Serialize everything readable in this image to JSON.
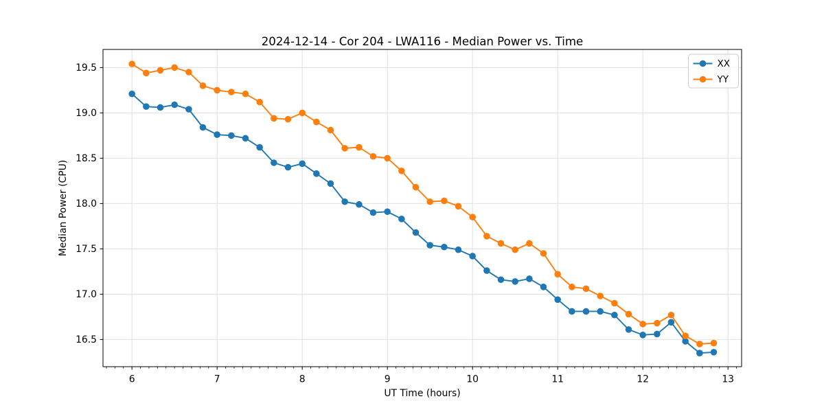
{
  "chart_data": {
    "type": "line",
    "title": "2024-12-14 - Cor 204 - LWA116 - Median Power vs. Time",
    "xlabel": "UT Time (hours)",
    "ylabel": "Median Power (CPU)",
    "xlim": [
      5.66,
      13.16
    ],
    "ylim": [
      16.2,
      19.7
    ],
    "xticks": [
      6,
      7,
      8,
      9,
      10,
      11,
      12,
      13
    ],
    "yticks": [
      16.5,
      17.0,
      17.5,
      18.0,
      18.5,
      19.0,
      19.5
    ],
    "x_minor_step": 0.1,
    "grid": true,
    "grid_color": "#e0e0e0",
    "legend_position": "upper right",
    "x": [
      6.0,
      6.167,
      6.333,
      6.5,
      6.667,
      6.833,
      7.0,
      7.167,
      7.333,
      7.5,
      7.667,
      7.833,
      8.0,
      8.167,
      8.333,
      8.5,
      8.667,
      8.833,
      9.0,
      9.167,
      9.333,
      9.5,
      9.667,
      9.833,
      10.0,
      10.167,
      10.333,
      10.5,
      10.667,
      10.833,
      11.0,
      11.167,
      11.333,
      11.5,
      11.667,
      11.833,
      12.0,
      12.167,
      12.333,
      12.5,
      12.667,
      12.833
    ],
    "series": [
      {
        "name": "XX",
        "color": "#1f77b4",
        "values": [
          19.21,
          19.07,
          19.06,
          19.09,
          19.04,
          18.84,
          18.76,
          18.75,
          18.72,
          18.62,
          18.45,
          18.4,
          18.44,
          18.33,
          18.22,
          18.02,
          17.99,
          17.9,
          17.91,
          17.83,
          17.68,
          17.54,
          17.52,
          17.49,
          17.42,
          17.26,
          17.16,
          17.14,
          17.17,
          17.08,
          16.94,
          16.81,
          16.81,
          16.81,
          16.77,
          16.61,
          16.55,
          16.56,
          16.69,
          16.48,
          16.35,
          16.36
        ]
      },
      {
        "name": "YY",
        "color": "#ff7f0e",
        "values": [
          19.54,
          19.44,
          19.47,
          19.5,
          19.45,
          19.3,
          19.25,
          19.23,
          19.21,
          19.12,
          18.94,
          18.93,
          19.0,
          18.9,
          18.81,
          18.61,
          18.62,
          18.52,
          18.5,
          18.36,
          18.18,
          18.02,
          18.03,
          17.97,
          17.85,
          17.64,
          17.56,
          17.49,
          17.56,
          17.45,
          17.22,
          17.08,
          17.06,
          16.98,
          16.9,
          16.78,
          16.67,
          16.68,
          16.77,
          16.54,
          16.45,
          16.46
        ]
      }
    ]
  }
}
